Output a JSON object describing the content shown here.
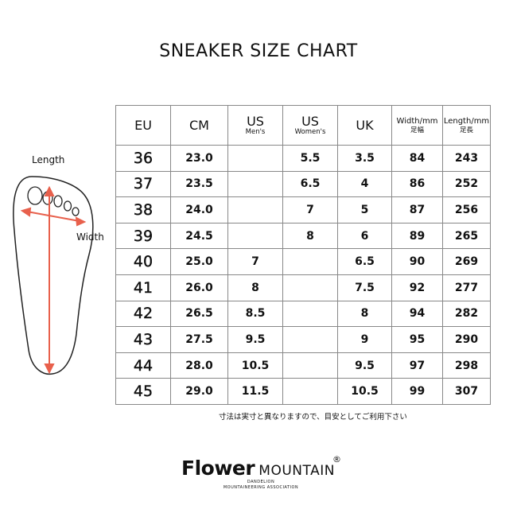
{
  "title": "SNEAKER SIZE CHART",
  "diagram": {
    "length_label": "Length",
    "width_label": "Width",
    "arrow_color": "#e8604c"
  },
  "table": {
    "headers": [
      {
        "main": "EU",
        "sub": ""
      },
      {
        "main": "CM",
        "sub": ""
      },
      {
        "main": "US",
        "sub": "Men's"
      },
      {
        "main": "US",
        "sub": "Women's"
      },
      {
        "main": "UK",
        "sub": ""
      },
      {
        "main": "Width/mm",
        "sub": "足幅"
      },
      {
        "main": "Length/mm",
        "sub": "足長"
      }
    ],
    "rows": [
      [
        "36",
        "23.0",
        "",
        "5.5",
        "3.5",
        "84",
        "243"
      ],
      [
        "37",
        "23.5",
        "",
        "6.5",
        "4",
        "86",
        "252"
      ],
      [
        "38",
        "24.0",
        "",
        "7",
        "5",
        "87",
        "256"
      ],
      [
        "39",
        "24.5",
        "",
        "8",
        "6",
        "89",
        "265"
      ],
      [
        "40",
        "25.0",
        "7",
        "",
        "6.5",
        "90",
        "269"
      ],
      [
        "41",
        "26.0",
        "8",
        "",
        "7.5",
        "92",
        "277"
      ],
      [
        "42",
        "26.5",
        "8.5",
        "",
        "8",
        "94",
        "282"
      ],
      [
        "43",
        "27.5",
        "9.5",
        "",
        "9",
        "95",
        "290"
      ],
      [
        "44",
        "28.0",
        "10.5",
        "",
        "9.5",
        "97",
        "298"
      ],
      [
        "45",
        "29.0",
        "11.5",
        "",
        "10.5",
        "99",
        "307"
      ]
    ]
  },
  "note": "寸法は実寸と異なりますので、目安としてご利用下さい",
  "logo": {
    "brand": "Flower",
    "name": "MOUNTAIN",
    "reg": "®",
    "tagline1": "DANDELION",
    "tagline2": "MOUNTAINEERING ASSOCIATION"
  }
}
